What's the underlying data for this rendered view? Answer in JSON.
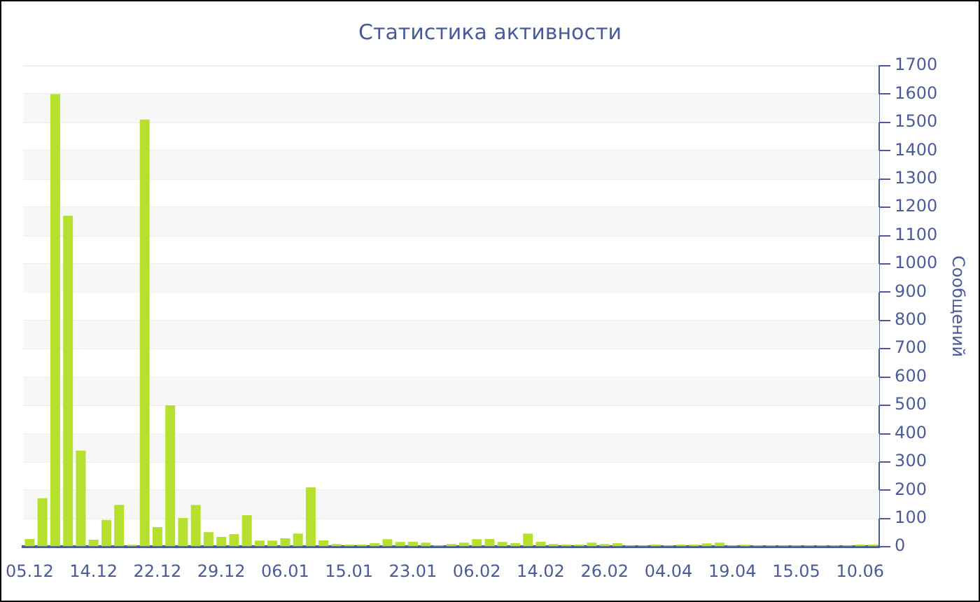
{
  "chart_data": {
    "type": "bar",
    "title": "Статистика активности",
    "ylabel": "Сообщений",
    "categories": [
      "05.12",
      null,
      null,
      null,
      null,
      "14.12",
      null,
      null,
      null,
      null,
      "22.12",
      null,
      null,
      null,
      null,
      "29.12",
      null,
      null,
      null,
      null,
      "06.01",
      null,
      null,
      null,
      null,
      "15.01",
      null,
      null,
      null,
      null,
      "23.01",
      null,
      null,
      null,
      null,
      "06.02",
      null,
      null,
      null,
      null,
      "14.02",
      null,
      null,
      null,
      null,
      "26.02",
      null,
      null,
      null,
      null,
      "04.04",
      null,
      null,
      null,
      null,
      "19.04",
      null,
      null,
      null,
      null,
      "15.05",
      null,
      null,
      null,
      null,
      "10.06",
      null
    ],
    "values": [
      28,
      172,
      1600,
      1170,
      340,
      25,
      95,
      148,
      7,
      1510,
      70,
      500,
      102,
      148,
      52,
      35,
      45,
      112,
      22,
      22,
      30,
      47,
      210,
      23,
      10,
      8,
      8,
      13,
      27,
      17,
      18,
      15,
      5,
      10,
      15,
      27,
      28,
      17,
      13,
      47,
      18,
      10,
      8,
      8,
      15,
      10,
      13,
      5,
      5,
      8,
      5,
      8,
      8,
      12,
      15,
      5,
      7,
      5,
      5,
      5,
      5,
      5,
      5,
      5,
      5,
      8,
      8
    ],
    "color": "#b5e02e",
    "ylim": [
      0,
      1700
    ],
    "yticks": [
      0,
      100,
      200,
      300,
      400,
      500,
      600,
      700,
      800,
      900,
      1000,
      1100,
      1200,
      1300,
      1400,
      1500,
      1600,
      1700
    ],
    "grid": "y",
    "legend": false
  }
}
